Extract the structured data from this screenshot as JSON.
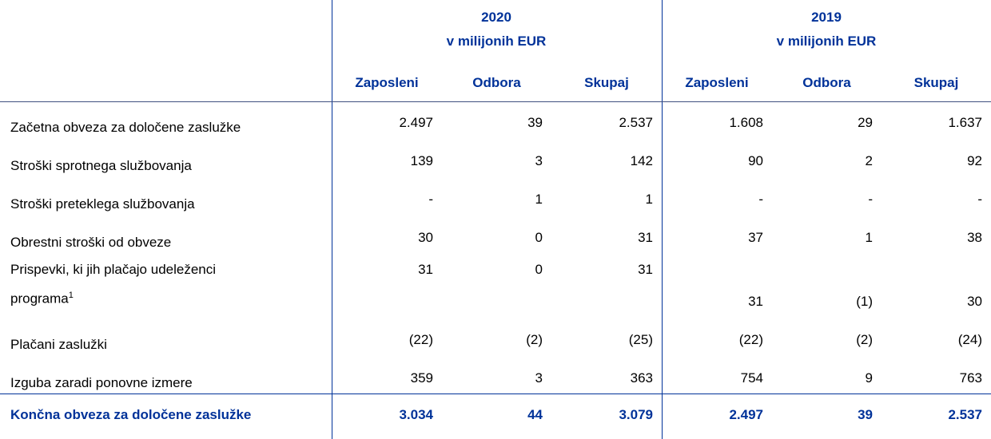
{
  "table": {
    "groups": [
      {
        "year": "2020",
        "unit": "v milijonih EUR"
      },
      {
        "year": "2019",
        "unit": "v milijonih EUR"
      }
    ],
    "columns": [
      "Zaposleni",
      "Odbora",
      "Skupaj",
      "Zaposleni",
      "Odbora",
      "Skupaj"
    ],
    "rows": [
      {
        "label": "Začetna obveza za določene zaslužke",
        "cells": [
          "2.497",
          "39",
          "2.537",
          "1.608",
          "29",
          "1.637"
        ]
      },
      {
        "label": "Stroški sprotnega službovanja",
        "cells": [
          "139",
          "3",
          "142",
          "90",
          "2",
          "92"
        ]
      },
      {
        "label": "Stroški preteklega službovanja",
        "cells": [
          "-",
          "1",
          "1",
          "-",
          "-",
          "-"
        ]
      },
      {
        "label": "Obrestni stroški od obveze",
        "cells": [
          "30",
          "0",
          "31",
          "37",
          "1",
          "38"
        ]
      },
      {
        "label": "Prispevki, ki jih plačajo udeleženci programa",
        "footnote": "1",
        "cells": [
          "31",
          "0",
          "31",
          "31",
          "(1)",
          "30"
        ]
      },
      {
        "label": "Plačani zaslužki",
        "cells": [
          "(22)",
          "(2)",
          "(25)",
          "(22)",
          "(2)",
          "(24)"
        ]
      },
      {
        "label": "Izguba zaradi ponovne izmere",
        "cells": [
          "359",
          "3",
          "363",
          "754",
          "9",
          "763"
        ]
      }
    ],
    "total": {
      "label": "Končna obveza za določene zaslužke",
      "cells": [
        "3.034",
        "44",
        "3.079",
        "2.497",
        "39",
        "2.537"
      ]
    }
  }
}
